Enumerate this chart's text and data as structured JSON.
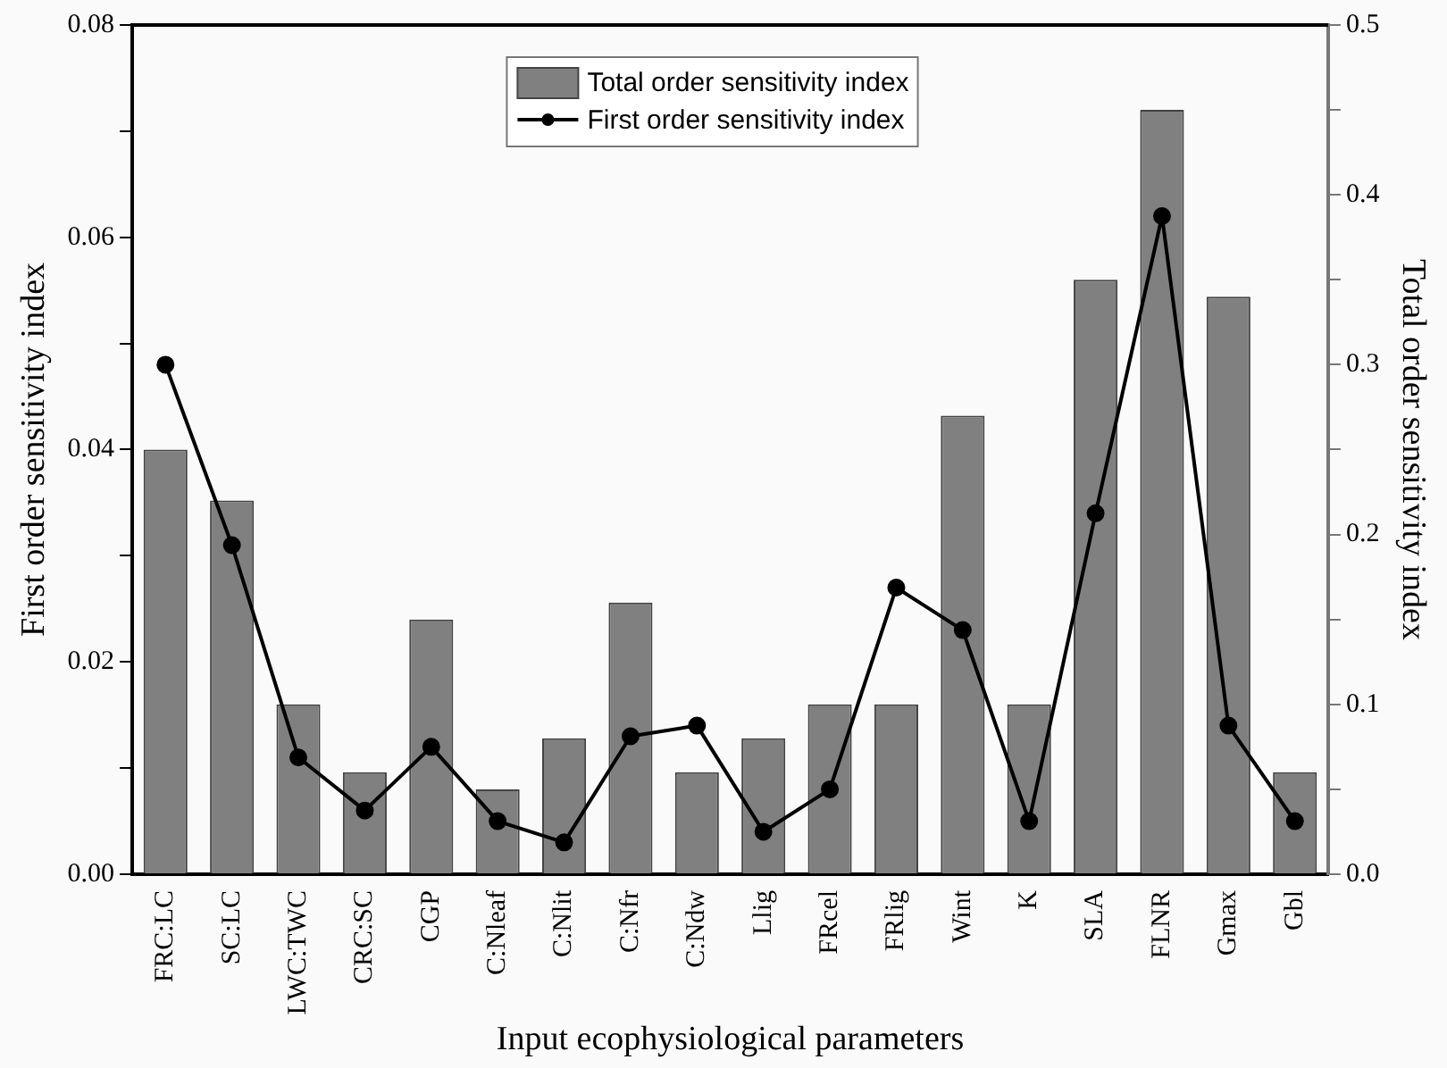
{
  "chart_data": {
    "type": "bar",
    "xlabel": "Input ecophysiological parameters",
    "ylabel": "First order sensitivity index",
    "y2label": "Total order sensitivity index",
    "categories": [
      "FRC:LC",
      "SC:LC",
      "LWC:TWC",
      "CRC:SC",
      "CGP",
      "C:Nleaf",
      "C:Nlit",
      "C:Nfr",
      "C:Ndw",
      "Llig",
      "FRcel",
      "FRlig",
      "Wint",
      "K",
      "SLA",
      "FLNR",
      "Gmax",
      "Gbl"
    ],
    "series": [
      {
        "name": "Total order sensitivity index",
        "axis": "y2",
        "color": "#808080",
        "values": [
          0.25,
          0.22,
          0.1,
          0.06,
          0.15,
          0.05,
          0.08,
          0.16,
          0.06,
          0.08,
          0.1,
          0.1,
          0.27,
          0.1,
          0.35,
          0.45,
          0.34,
          0.06
        ]
      },
      {
        "name": "First order sensitivity index",
        "type": "line",
        "color": "#000000",
        "marker": "circle",
        "line_style": "solid",
        "values": [
          0.048,
          0.031,
          0.011,
          0.006,
          0.012,
          0.005,
          0.003,
          0.013,
          0.014,
          0.004,
          0.008,
          0.027,
          0.023,
          0.005,
          0.034,
          0.062,
          0.014,
          0.005
        ]
      }
    ],
    "ylim": [
      0,
      0.08
    ],
    "yticks": [
      {
        "value": 0,
        "label": "0.00"
      },
      {
        "value": 0.01,
        "label": null
      },
      {
        "value": 0.02,
        "label": "0.02"
      },
      {
        "value": 0.03,
        "label": null
      },
      {
        "value": 0.04,
        "label": "0.04"
      },
      {
        "value": 0.05,
        "label": null
      },
      {
        "value": 0.06,
        "label": "0.06"
      },
      {
        "value": 0.07,
        "label": null
      },
      {
        "value": 0.08,
        "label": "0.08"
      }
    ],
    "y2lim": [
      0,
      0.5
    ],
    "y2ticks": [
      {
        "value": 0,
        "label": "0.0"
      },
      {
        "value": 0.05,
        "label": null
      },
      {
        "value": 0.1,
        "label": "0.1"
      },
      {
        "value": 0.15,
        "label": null
      },
      {
        "value": 0.2,
        "label": "0.2"
      },
      {
        "value": 0.25,
        "label": null
      },
      {
        "value": 0.3,
        "label": "0.3"
      },
      {
        "value": 0.35,
        "label": null
      },
      {
        "value": 0.4,
        "label": "0.4"
      },
      {
        "value": 0.45,
        "label": null
      },
      {
        "value": 0.5,
        "label": "0.5"
      }
    ],
    "legend": "top",
    "grid": false
  }
}
